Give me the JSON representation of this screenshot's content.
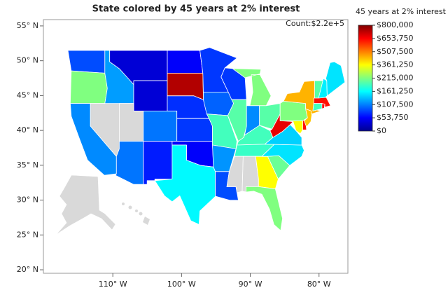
{
  "chart_data": {
    "type": "map",
    "title": "State colored by 45 years at 2% interest",
    "count_label": "Count:$2.2e+5",
    "xlim": [
      -120.1,
      -75.8
    ],
    "xticks": [
      {
        "value": -110,
        "label": "110° W"
      },
      {
        "value": -100,
        "label": "100° W"
      },
      {
        "value": -90,
        "label": "90° W"
      },
      {
        "value": -80,
        "label": "80° W"
      }
    ],
    "ylim": [
      19.5,
      55.9
    ],
    "yticks": [
      {
        "value": 20,
        "label": "20° N"
      },
      {
        "value": 25,
        "label": "25° N"
      },
      {
        "value": 30,
        "label": "30° N"
      },
      {
        "value": 35,
        "label": "35° N"
      },
      {
        "value": 40,
        "label": "40° N"
      },
      {
        "value": 45,
        "label": "45° N"
      },
      {
        "value": 50,
        "label": "50° N"
      },
      {
        "value": 55,
        "label": "55° N"
      }
    ],
    "values": [
      86000,
      215000,
      112000,
      null,
      120000,
      34000,
      34000,
      null,
      103000,
      103000,
      65000,
      52000,
      742000,
      73000,
      77000,
      52000,
      159000,
      77000,
      95000,
      189000,
      116000,
      86000,
      77000,
      198000,
      215000,
      112000,
      198000,
      189000,
      185000,
      null,
      null,
      361000,
      215000,
      206000,
      150000,
      142000,
      683000,
      355000,
      636000,
      215000,
      426000,
      449000,
      198000,
      155000,
      150000,
      636000,
      189000,
      660000
    ],
    "missing_color": "#d9d9d9",
    "colorbar": {
      "title": "45 years at 2% interest",
      "ticks": [
        {
          "value": 800000,
          "label": "$800,000"
        },
        {
          "value": 653750,
          "label": "$653,750"
        },
        {
          "value": 507500,
          "label": "$507,500"
        },
        {
          "value": 361250,
          "label": "$361,250"
        },
        {
          "value": 215000,
          "label": "$215,000"
        },
        {
          "value": 161250,
          "label": "$161,250"
        },
        {
          "value": 107500,
          "label": "$107,500"
        },
        {
          "value": 53750,
          "label": "$53,750"
        },
        {
          "value": 0,
          "label": "$0"
        }
      ],
      "colorscale": [
        [
          0,
          "#00008f"
        ],
        [
          0.125,
          "#0000ff"
        ],
        [
          0.375,
          "#00ffff"
        ],
        [
          0.625,
          "#ffff00"
        ],
        [
          0.875,
          "#ff0000"
        ],
        [
          1,
          "#800000"
        ]
      ]
    }
  }
}
